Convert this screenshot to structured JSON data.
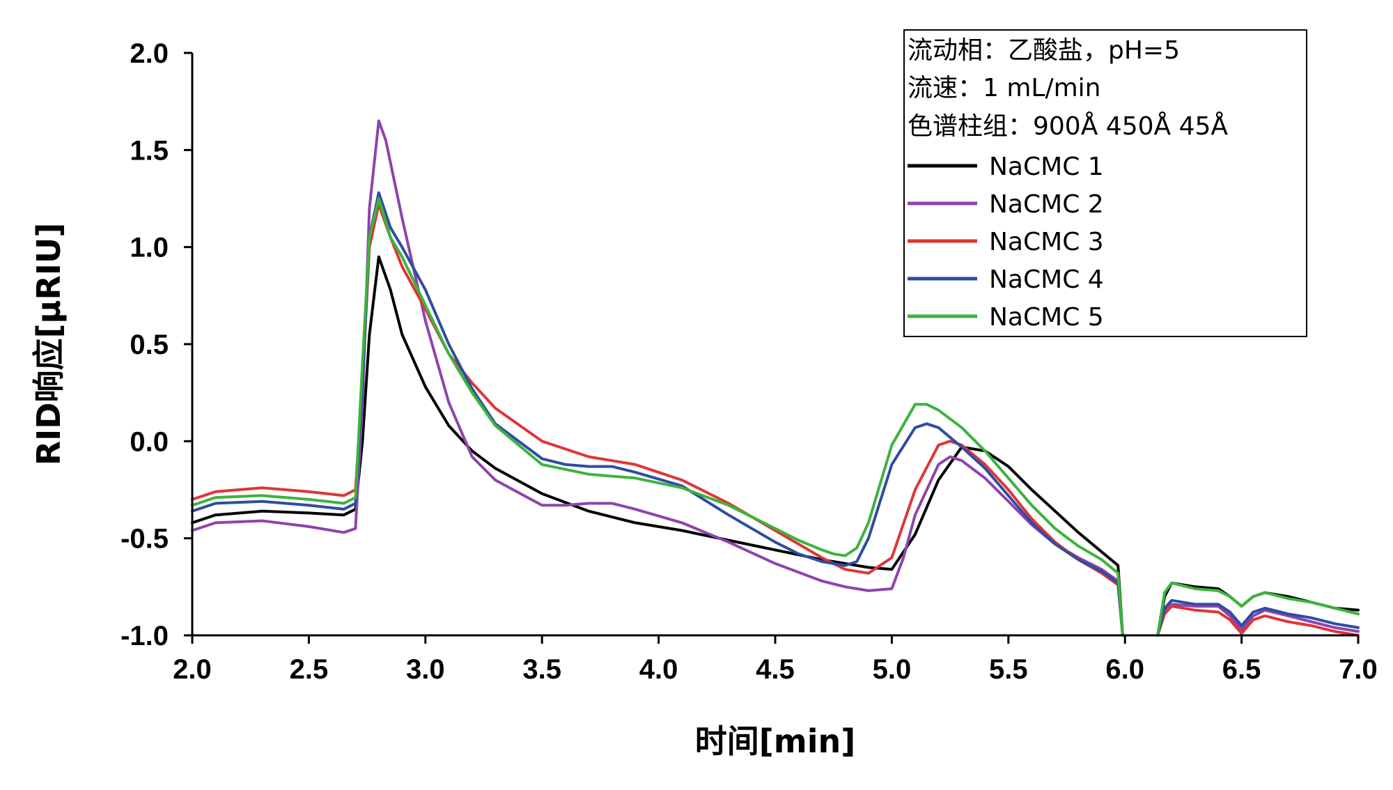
{
  "chart_data": {
    "type": "line",
    "title": "",
    "xlabel": "时间[min]",
    "ylabel": "RID响应[μRIU]",
    "xlim": [
      2.0,
      7.0
    ],
    "ylim": [
      -1.0,
      2.0
    ],
    "xticks": [
      "2.0",
      "2.5",
      "3.0",
      "3.5",
      "4.0",
      "4.5",
      "5.0",
      "5.5",
      "6.0",
      "6.5",
      "7.0"
    ],
    "yticks": [
      "2.0",
      "1.5",
      "1.0",
      "0.5",
      "0.0",
      "-0.5",
      "-1.0"
    ],
    "grid": false,
    "legend_position": "top-right",
    "annotations": [
      "流动相：乙酸盐，pH=5",
      "流速：1 mL/min",
      "色谱柱组：900Å 450Å 45Å"
    ],
    "series": [
      {
        "name": "NaCMC 1",
        "color": "#000000",
        "x": [
          2.0,
          2.1,
          2.3,
          2.5,
          2.65,
          2.7,
          2.73,
          2.76,
          2.8,
          2.85,
          2.9,
          3.0,
          3.1,
          3.2,
          3.3,
          3.5,
          3.7,
          3.9,
          4.1,
          4.3,
          4.5,
          4.7,
          4.9,
          5.0,
          5.1,
          5.2,
          5.3,
          5.4,
          5.5,
          5.6,
          5.7,
          5.8,
          5.9,
          5.97,
          5.99,
          6.14,
          6.17,
          6.2,
          6.3,
          6.4,
          6.45,
          6.5,
          6.55,
          6.6,
          6.7,
          6.8,
          6.9,
          7.0
        ],
        "y": [
          -0.42,
          -0.38,
          -0.36,
          -0.37,
          -0.38,
          -0.35,
          0.0,
          0.55,
          0.95,
          0.78,
          0.55,
          0.28,
          0.08,
          -0.05,
          -0.14,
          -0.27,
          -0.36,
          -0.42,
          -0.46,
          -0.51,
          -0.56,
          -0.61,
          -0.65,
          -0.66,
          -0.48,
          -0.2,
          -0.03,
          -0.05,
          -0.13,
          -0.25,
          -0.36,
          -0.47,
          -0.57,
          -0.64,
          -1.0,
          -1.0,
          -0.8,
          -0.73,
          -0.75,
          -0.76,
          -0.8,
          -0.85,
          -0.8,
          -0.78,
          -0.8,
          -0.83,
          -0.86,
          -0.87
        ]
      },
      {
        "name": "NaCMC 2",
        "color": "#8e44ad",
        "x": [
          2.0,
          2.1,
          2.3,
          2.5,
          2.65,
          2.7,
          2.73,
          2.76,
          2.8,
          2.83,
          2.9,
          3.0,
          3.1,
          3.2,
          3.3,
          3.5,
          3.6,
          3.7,
          3.8,
          3.9,
          4.1,
          4.3,
          4.5,
          4.7,
          4.8,
          4.9,
          5.0,
          5.05,
          5.1,
          5.2,
          5.25,
          5.3,
          5.4,
          5.5,
          5.6,
          5.7,
          5.8,
          5.9,
          5.97,
          5.99,
          6.14,
          6.17,
          6.2,
          6.3,
          6.4,
          6.45,
          6.5,
          6.55,
          6.6,
          6.7,
          6.8,
          6.9,
          7.0
        ],
        "y": [
          -0.46,
          -0.42,
          -0.41,
          -0.44,
          -0.47,
          -0.45,
          0.2,
          1.2,
          1.65,
          1.55,
          1.15,
          0.62,
          0.2,
          -0.08,
          -0.2,
          -0.33,
          -0.33,
          -0.32,
          -0.32,
          -0.35,
          -0.42,
          -0.52,
          -0.63,
          -0.72,
          -0.75,
          -0.77,
          -0.76,
          -0.6,
          -0.38,
          -0.12,
          -0.08,
          -0.1,
          -0.19,
          -0.31,
          -0.43,
          -0.53,
          -0.6,
          -0.66,
          -0.72,
          -1.0,
          -1.0,
          -0.87,
          -0.84,
          -0.85,
          -0.85,
          -0.9,
          -0.97,
          -0.9,
          -0.87,
          -0.9,
          -0.93,
          -0.96,
          -0.98
        ]
      },
      {
        "name": "NaCMC 3",
        "color": "#e03535",
        "x": [
          2.0,
          2.1,
          2.3,
          2.5,
          2.65,
          2.7,
          2.73,
          2.76,
          2.8,
          2.85,
          2.9,
          3.0,
          3.1,
          3.2,
          3.3,
          3.5,
          3.7,
          3.9,
          4.1,
          4.3,
          4.5,
          4.7,
          4.8,
          4.9,
          5.0,
          5.1,
          5.2,
          5.25,
          5.3,
          5.4,
          5.5,
          5.6,
          5.7,
          5.8,
          5.9,
          5.97,
          5.99,
          6.14,
          6.17,
          6.2,
          6.3,
          6.4,
          6.45,
          6.5,
          6.55,
          6.6,
          6.7,
          6.8,
          6.9,
          7.0
        ],
        "y": [
          -0.3,
          -0.26,
          -0.24,
          -0.26,
          -0.28,
          -0.25,
          0.3,
          1.0,
          1.22,
          1.05,
          0.9,
          0.68,
          0.45,
          0.3,
          0.17,
          0.0,
          -0.08,
          -0.12,
          -0.2,
          -0.32,
          -0.46,
          -0.6,
          -0.66,
          -0.68,
          -0.6,
          -0.25,
          -0.02,
          0.0,
          -0.02,
          -0.12,
          -0.25,
          -0.4,
          -0.52,
          -0.61,
          -0.68,
          -0.74,
          -1.0,
          -1.0,
          -0.89,
          -0.85,
          -0.87,
          -0.88,
          -0.92,
          -0.99,
          -0.92,
          -0.9,
          -0.93,
          -0.95,
          -0.98,
          -1.0
        ]
      },
      {
        "name": "NaCMC 4",
        "color": "#2e4da0",
        "x": [
          2.0,
          2.1,
          2.3,
          2.5,
          2.65,
          2.7,
          2.73,
          2.76,
          2.8,
          2.85,
          2.9,
          3.0,
          3.1,
          3.2,
          3.3,
          3.5,
          3.6,
          3.7,
          3.8,
          3.9,
          4.1,
          4.3,
          4.5,
          4.6,
          4.7,
          4.8,
          4.85,
          4.9,
          5.0,
          5.1,
          5.15,
          5.2,
          5.3,
          5.4,
          5.5,
          5.6,
          5.7,
          5.8,
          5.9,
          5.97,
          5.99,
          6.14,
          6.17,
          6.2,
          6.3,
          6.4,
          6.45,
          6.5,
          6.55,
          6.6,
          6.7,
          6.8,
          6.9,
          7.0
        ],
        "y": [
          -0.36,
          -0.32,
          -0.31,
          -0.33,
          -0.35,
          -0.32,
          0.3,
          1.05,
          1.28,
          1.1,
          1.0,
          0.78,
          0.5,
          0.27,
          0.09,
          -0.09,
          -0.12,
          -0.13,
          -0.13,
          -0.16,
          -0.23,
          -0.38,
          -0.52,
          -0.58,
          -0.62,
          -0.64,
          -0.62,
          -0.5,
          -0.12,
          0.07,
          0.09,
          0.07,
          -0.03,
          -0.14,
          -0.28,
          -0.42,
          -0.53,
          -0.61,
          -0.67,
          -0.73,
          -1.0,
          -1.0,
          -0.86,
          -0.82,
          -0.84,
          -0.84,
          -0.88,
          -0.95,
          -0.88,
          -0.86,
          -0.89,
          -0.91,
          -0.94,
          -0.96
        ]
      },
      {
        "name": "NaCMC 5",
        "color": "#3db33d",
        "x": [
          2.0,
          2.1,
          2.3,
          2.5,
          2.65,
          2.7,
          2.73,
          2.76,
          2.8,
          2.85,
          2.9,
          3.0,
          3.1,
          3.2,
          3.3,
          3.5,
          3.7,
          3.9,
          4.1,
          4.3,
          4.5,
          4.6,
          4.7,
          4.75,
          4.8,
          4.85,
          4.9,
          5.0,
          5.1,
          5.15,
          5.2,
          5.3,
          5.4,
          5.5,
          5.6,
          5.7,
          5.8,
          5.9,
          5.97,
          5.99,
          6.14,
          6.17,
          6.2,
          6.3,
          6.4,
          6.45,
          6.5,
          6.55,
          6.6,
          6.7,
          6.8,
          6.9,
          7.0
        ],
        "y": [
          -0.33,
          -0.29,
          -0.28,
          -0.3,
          -0.32,
          -0.29,
          0.4,
          1.05,
          1.25,
          1.05,
          0.95,
          0.7,
          0.45,
          0.25,
          0.08,
          -0.12,
          -0.17,
          -0.19,
          -0.24,
          -0.33,
          -0.45,
          -0.51,
          -0.56,
          -0.58,
          -0.59,
          -0.55,
          -0.42,
          -0.02,
          0.19,
          0.19,
          0.16,
          0.07,
          -0.05,
          -0.19,
          -0.33,
          -0.45,
          -0.54,
          -0.61,
          -0.68,
          -1.0,
          -1.0,
          -0.78,
          -0.73,
          -0.76,
          -0.77,
          -0.8,
          -0.85,
          -0.8,
          -0.78,
          -0.81,
          -0.83,
          -0.86,
          -0.89
        ]
      }
    ]
  }
}
